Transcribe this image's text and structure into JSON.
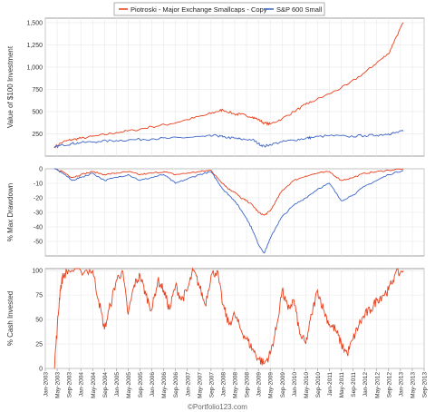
{
  "legend": [
    {
      "label": "Piotroski - Major Exchange Smallcaps - Copy",
      "color": "#e8401c"
    },
    {
      "label": "S&P 600 Small",
      "color": "#3d66c8"
    }
  ],
  "watermark": "©Portfolio123.com",
  "x_ticks": [
    "Jan-2003",
    "May-2003",
    "Sep-2003",
    "Jan-2004",
    "May-2004",
    "Sep-2004",
    "Jan-2005",
    "May-2005",
    "Sep-2005",
    "Jan-2006",
    "May-2006",
    "Sep-2006",
    "Jan-2007",
    "May-2007",
    "Sep-2007",
    "Jan-2008",
    "May-2008",
    "Sep-2008",
    "Jan-2009",
    "May-2009",
    "Sep-2009",
    "Jan-2010",
    "May-2010",
    "Sep-2010",
    "Jan-2011",
    "May-2011",
    "Sep-2011",
    "Jan-2012",
    "May-2012",
    "Sep-2012",
    "Jan-2013",
    "May-2013",
    "Sep-2013"
  ],
  "chart_data": [
    {
      "type": "line",
      "ylabel": "Value of $100 Investment",
      "yticks": [
        250,
        500,
        750,
        1000,
        1250,
        1500
      ],
      "ytick_labels": [
        "250",
        "500",
        "750",
        "1,000",
        "1,250",
        "1,500"
      ],
      "ylim": [
        0,
        1550
      ],
      "x_month_index_from_jan_2003": true,
      "series": [
        {
          "name": "Piotroski - Major Exchange Smallcaps - Copy",
          "color": "#e8401c",
          "x": [
            3,
            6,
            9,
            12,
            18,
            24,
            30,
            36,
            42,
            48,
            54,
            58,
            60,
            64,
            66,
            70,
            72,
            74,
            76,
            80,
            84,
            88,
            90,
            96,
            102,
            108,
            112,
            116,
            118,
            121
          ],
          "y": [
            100,
            160,
            185,
            200,
            230,
            265,
            290,
            330,
            360,
            410,
            460,
            500,
            520,
            470,
            470,
            440,
            410,
            370,
            360,
            420,
            500,
            580,
            610,
            700,
            800,
            940,
            1050,
            1150,
            1300,
            1500
          ]
        },
        {
          "name": "S&P 600 Small",
          "color": "#3d66c8",
          "x": [
            3,
            6,
            9,
            12,
            18,
            24,
            30,
            36,
            42,
            48,
            54,
            58,
            60,
            64,
            66,
            70,
            72,
            74,
            76,
            80,
            84,
            88,
            90,
            96,
            102,
            108,
            112,
            116,
            118,
            121
          ],
          "y": [
            100,
            125,
            140,
            150,
            165,
            175,
            185,
            195,
            200,
            210,
            220,
            230,
            215,
            200,
            190,
            185,
            140,
            110,
            130,
            160,
            180,
            200,
            210,
            230,
            220,
            230,
            235,
            250,
            260,
            280
          ]
        }
      ]
    },
    {
      "type": "line",
      "ylabel": "% Max Drawdown",
      "yticks": [
        0,
        -10,
        -20,
        -30,
        -40,
        -50
      ],
      "ytick_labels": [
        "0",
        "-10",
        "-20",
        "-30",
        "-40",
        "-50"
      ],
      "ylim": [
        -60,
        0
      ],
      "series": [
        {
          "name": "Piotroski - Major Exchange Smallcaps - Copy",
          "color": "#e8401c",
          "x": [
            3,
            6,
            9,
            12,
            16,
            20,
            24,
            28,
            32,
            36,
            40,
            44,
            48,
            52,
            56,
            58,
            60,
            62,
            64,
            66,
            68,
            70,
            72,
            74,
            76,
            78,
            80,
            84,
            88,
            92,
            96,
            100,
            104,
            108,
            112,
            116,
            121
          ],
          "y": [
            0,
            -2,
            -6,
            -4,
            -2,
            -4,
            -3,
            -2,
            -4,
            -3,
            -2,
            -4,
            -3,
            -2,
            -1,
            -6,
            -10,
            -14,
            -16,
            -20,
            -22,
            -25,
            -30,
            -32,
            -29,
            -22,
            -15,
            -8,
            -5,
            -3,
            -2,
            -8,
            -6,
            -3,
            -2,
            -1,
            0
          ]
        },
        {
          "name": "S&P 600 Small",
          "color": "#3d66c8",
          "x": [
            3,
            6,
            9,
            12,
            16,
            20,
            24,
            28,
            32,
            36,
            40,
            44,
            48,
            52,
            56,
            58,
            60,
            62,
            64,
            66,
            68,
            70,
            72,
            74,
            76,
            78,
            80,
            84,
            88,
            92,
            96,
            100,
            104,
            108,
            112,
            116,
            121
          ],
          "y": [
            0,
            -3,
            -8,
            -6,
            -3,
            -8,
            -6,
            -4,
            -8,
            -6,
            -4,
            -10,
            -7,
            -4,
            -2,
            -8,
            -14,
            -18,
            -22,
            -28,
            -34,
            -42,
            -52,
            -58,
            -48,
            -40,
            -33,
            -25,
            -20,
            -14,
            -10,
            -22,
            -18,
            -12,
            -8,
            -4,
            -1
          ]
        }
      ]
    },
    {
      "type": "line",
      "ylabel": "% Cash Invested",
      "yticks": [
        0,
        25,
        50,
        75,
        100
      ],
      "ytick_labels": [
        "0",
        "25",
        "50",
        "75",
        "100"
      ],
      "ylim": [
        0,
        102
      ],
      "series": [
        {
          "name": "Piotroski - Major Exchange Smallcaps - Copy",
          "color": "#e8401c",
          "x": [
            3,
            4,
            5,
            6,
            8,
            12,
            16,
            18,
            20,
            22,
            24,
            26,
            28,
            30,
            32,
            34,
            36,
            38,
            40,
            42,
            44,
            46,
            48,
            50,
            52,
            54,
            56,
            58,
            60,
            62,
            64,
            66,
            68,
            70,
            72,
            74,
            76,
            78,
            80,
            82,
            84,
            86,
            88,
            90,
            92,
            94,
            96,
            98,
            100,
            102,
            104,
            106,
            108,
            110,
            112,
            114,
            116,
            118,
            121
          ],
          "y": [
            0,
            40,
            80,
            95,
            100,
            100,
            100,
            70,
            40,
            65,
            90,
            100,
            55,
            85,
            95,
            75,
            60,
            90,
            80,
            60,
            85,
            70,
            80,
            100,
            85,
            65,
            95,
            100,
            65,
            45,
            55,
            40,
            30,
            20,
            10,
            5,
            15,
            40,
            80,
            60,
            70,
            35,
            25,
            55,
            80,
            60,
            45,
            40,
            25,
            15,
            30,
            45,
            55,
            60,
            70,
            75,
            80,
            95,
            100
          ]
        }
      ]
    }
  ]
}
